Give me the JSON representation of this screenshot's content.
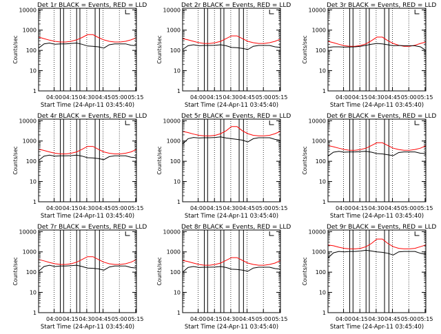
{
  "colors": {
    "events": "#000000",
    "lld": "#ff0000",
    "axis": "#000000",
    "background": "#ffffff"
  },
  "chart_data": [
    {
      "type": "line",
      "title": "Det 1r BLACK = Events, RED = LLD",
      "xlabel": "Start Time (24-Apr-11 03:45:40)",
      "ylabel": "Counts/sec",
      "x_tick_labels": [
        "04:00",
        "04:15",
        "04:30",
        "04:45",
        "05:00",
        "05:15"
      ],
      "y_tick_labels": [
        "1",
        "10",
        "100",
        "1000",
        "10000"
      ],
      "y_scale": "log",
      "ylim": [
        1,
        12000
      ],
      "x": [
        0,
        5,
        10,
        15,
        20,
        25,
        30,
        35,
        40,
        45,
        50,
        55,
        60,
        65,
        70,
        75,
        80,
        85,
        90
      ],
      "series": [
        {
          "name": "LLD",
          "color": "red",
          "values": [
            450,
            380,
            320,
            280,
            260,
            260,
            280,
            330,
            430,
            600,
            600,
            430,
            330,
            280,
            260,
            260,
            280,
            330,
            420
          ]
        },
        {
          "name": "Events",
          "color": "black",
          "values": [
            130,
            210,
            230,
            200,
            210,
            210,
            220,
            230,
            200,
            165,
            160,
            150,
            130,
            190,
            210,
            210,
            210,
            180,
            170
          ]
        }
      ]
    },
    {
      "type": "line",
      "title": "Det 2r BLACK = Events, RED = LLD",
      "xlabel": "Start Time (24-Apr-11 03:45:40)",
      "ylabel": "Counts/sec",
      "x_tick_labels": [
        "04:00",
        "04:15",
        "04:30",
        "04:45",
        "05:00",
        "05:15"
      ],
      "y_tick_labels": [
        "1",
        "10",
        "100",
        "1000",
        "10000"
      ],
      "y_scale": "log",
      "ylim": [
        1,
        12000
      ],
      "x": [
        0,
        5,
        10,
        15,
        20,
        25,
        30,
        35,
        40,
        45,
        50,
        55,
        60,
        65,
        70,
        75,
        80,
        85,
        90
      ],
      "series": [
        {
          "name": "LLD",
          "color": "red",
          "values": [
            380,
            330,
            280,
            240,
            220,
            220,
            240,
            280,
            380,
            520,
            520,
            380,
            280,
            240,
            220,
            220,
            240,
            280,
            360
          ]
        },
        {
          "name": "Events",
          "color": "black",
          "values": [
            110,
            170,
            190,
            170,
            175,
            175,
            180,
            190,
            170,
            140,
            135,
            125,
            110,
            160,
            175,
            175,
            175,
            150,
            140
          ]
        }
      ]
    },
    {
      "type": "line",
      "title": "Det 3r BLACK = Events, RED = LLD",
      "xlabel": "Start Time (24-Apr-11 03:45:40)",
      "ylabel": "Counts/sec",
      "x_tick_labels": [
        "04:00",
        "04:15",
        "04:30",
        "04:45",
        "05:00",
        "05:15"
      ],
      "y_tick_labels": [
        "1",
        "10",
        "100",
        "1000",
        "10000"
      ],
      "y_scale": "log",
      "ylim": [
        1,
        12000
      ],
      "x": [
        0,
        5,
        10,
        15,
        20,
        25,
        30,
        35,
        40,
        45,
        50,
        55,
        60,
        65,
        70,
        75,
        80,
        85,
        90
      ],
      "series": [
        {
          "name": "LLD",
          "color": "red",
          "values": [
            280,
            240,
            200,
            170,
            160,
            160,
            175,
            210,
            300,
            450,
            450,
            300,
            220,
            180,
            160,
            160,
            180,
            220,
            260
          ]
        },
        {
          "name": "Events",
          "color": "black",
          "values": [
            140,
            150,
            150,
            145,
            148,
            150,
            160,
            180,
            200,
            220,
            210,
            190,
            170,
            175,
            170,
            170,
            168,
            150,
            100
          ]
        }
      ]
    },
    {
      "type": "line",
      "title": "Det 4r BLACK = Events, RED = LLD",
      "xlabel": "Start Time (24-Apr-11 03:45:40)",
      "ylabel": "Counts/sec",
      "x_tick_labels": [
        "04:00",
        "04:15",
        "04:30",
        "04:45",
        "05:00",
        "05:15"
      ],
      "y_tick_labels": [
        "1",
        "10",
        "100",
        "1000",
        "10000"
      ],
      "y_scale": "log",
      "ylim": [
        1,
        12000
      ],
      "x": [
        0,
        5,
        10,
        15,
        20,
        25,
        30,
        35,
        40,
        45,
        50,
        55,
        60,
        65,
        70,
        75,
        80,
        85,
        90
      ],
      "series": [
        {
          "name": "LLD",
          "color": "red",
          "values": [
            400,
            340,
            290,
            250,
            230,
            230,
            250,
            290,
            390,
            540,
            540,
            390,
            290,
            250,
            230,
            230,
            250,
            290,
            380
          ]
        },
        {
          "name": "Events",
          "color": "black",
          "values": [
            110,
            180,
            200,
            180,
            185,
            185,
            190,
            200,
            180,
            150,
            145,
            135,
            120,
            170,
            185,
            185,
            185,
            160,
            150
          ]
        }
      ]
    },
    {
      "type": "line",
      "title": "Det 5r BLACK = Events, RED = LLD",
      "xlabel": "Start Time (24-Apr-11 03:45:40)",
      "ylabel": "Counts/sec",
      "x_tick_labels": [
        "04:00",
        "04:15",
        "04:30",
        "04:45",
        "05:00",
        "05:15"
      ],
      "y_tick_labels": [
        "1",
        "10",
        "100",
        "1000",
        "10000"
      ],
      "y_scale": "log",
      "ylim": [
        1,
        12000
      ],
      "x": [
        0,
        5,
        10,
        15,
        20,
        25,
        30,
        35,
        40,
        45,
        50,
        55,
        60,
        65,
        70,
        75,
        80,
        85,
        90
      ],
      "series": [
        {
          "name": "LLD",
          "color": "red",
          "values": [
            3000,
            2600,
            2200,
            1900,
            1800,
            1800,
            1900,
            2300,
            3200,
            5200,
            5200,
            3200,
            2300,
            1900,
            1800,
            1800,
            1900,
            2300,
            3000
          ]
        },
        {
          "name": "Events",
          "color": "black",
          "values": [
            700,
            1300,
            1500,
            1400,
            1450,
            1450,
            1500,
            1600,
            1400,
            1300,
            1200,
            1100,
            900,
            1300,
            1450,
            1450,
            1450,
            1200,
            1100
          ]
        }
      ]
    },
    {
      "type": "line",
      "title": "Det 6r BLACK = Events, RED = LLD",
      "xlabel": "Start Time (24-Apr-11 03:45:40)",
      "ylabel": "Counts/sec",
      "x_tick_labels": [
        "04:00",
        "04:15",
        "04:30",
        "04:45",
        "05:00",
        "05:15"
      ],
      "y_tick_labels": [
        "1",
        "10",
        "100",
        "1000",
        "10000"
      ],
      "y_scale": "log",
      "ylim": [
        1,
        12000
      ],
      "x": [
        0,
        5,
        10,
        15,
        20,
        25,
        30,
        35,
        40,
        45,
        50,
        55,
        60,
        65,
        70,
        75,
        80,
        85,
        90
      ],
      "series": [
        {
          "name": "LLD",
          "color": "red",
          "values": [
            600,
            520,
            440,
            380,
            350,
            350,
            380,
            440,
            600,
            820,
            820,
            600,
            440,
            380,
            350,
            350,
            380,
            440,
            580
          ]
        },
        {
          "name": "Events",
          "color": "black",
          "values": [
            180,
            280,
            310,
            280,
            290,
            290,
            300,
            310,
            280,
            240,
            230,
            210,
            190,
            270,
            290,
            290,
            290,
            250,
            240
          ]
        }
      ]
    },
    {
      "type": "line",
      "title": "Det 7r BLACK = Events, RED = LLD",
      "xlabel": "Start Time (24-Apr-11 03:45:40)",
      "ylabel": "Counts/sec",
      "x_tick_labels": [
        "04:00",
        "04:15",
        "04:30",
        "04:45",
        "05:00",
        "05:15"
      ],
      "y_tick_labels": [
        "1",
        "10",
        "100",
        "1000",
        "10000"
      ],
      "y_scale": "log",
      "ylim": [
        1,
        12000
      ],
      "x": [
        0,
        5,
        10,
        15,
        20,
        25,
        30,
        35,
        40,
        45,
        50,
        55,
        60,
        65,
        70,
        75,
        80,
        85,
        90
      ],
      "series": [
        {
          "name": "LLD",
          "color": "red",
          "values": [
            420,
            360,
            300,
            260,
            240,
            240,
            260,
            310,
            420,
            580,
            580,
            420,
            310,
            260,
            240,
            240,
            260,
            310,
            410
          ]
        },
        {
          "name": "Events",
          "color": "black",
          "values": [
            110,
            190,
            220,
            190,
            200,
            200,
            210,
            220,
            190,
            160,
            155,
            145,
            125,
            180,
            200,
            200,
            200,
            170,
            160
          ]
        }
      ]
    },
    {
      "type": "line",
      "title": "Det 8r BLACK = Events, RED = LLD",
      "xlabel": "Start Time (24-Apr-11 03:45:40)",
      "ylabel": "Counts/sec",
      "x_tick_labels": [
        "04:00",
        "04:15",
        "04:30",
        "04:45",
        "05:00",
        "05:15"
      ],
      "y_tick_labels": [
        "1",
        "10",
        "100",
        "1000",
        "10000"
      ],
      "y_scale": "log",
      "ylim": [
        1,
        12000
      ],
      "x": [
        0,
        5,
        10,
        15,
        20,
        25,
        30,
        35,
        40,
        45,
        50,
        55,
        60,
        65,
        70,
        75,
        80,
        85,
        90
      ],
      "series": [
        {
          "name": "LLD",
          "color": "red",
          "values": [
            380,
            330,
            280,
            240,
            220,
            220,
            240,
            280,
            380,
            520,
            520,
            380,
            280,
            240,
            220,
            220,
            240,
            280,
            370
          ]
        },
        {
          "name": "Events",
          "color": "black",
          "values": [
            100,
            170,
            190,
            170,
            175,
            175,
            180,
            190,
            170,
            140,
            135,
            125,
            110,
            160,
            175,
            175,
            175,
            150,
            140
          ]
        }
      ]
    },
    {
      "type": "line",
      "title": "Det 9r BLACK = Events, RED = LLD",
      "xlabel": "Start Time (24-Apr-11 03:45:40)",
      "ylabel": "Counts/sec",
      "x_tick_labels": [
        "04:00",
        "04:15",
        "04:30",
        "04:45",
        "05:00",
        "05:15"
      ],
      "y_tick_labels": [
        "1",
        "10",
        "100",
        "1000",
        "10000"
      ],
      "y_scale": "log",
      "ylim": [
        1,
        12000
      ],
      "x": [
        0,
        5,
        10,
        15,
        20,
        25,
        30,
        35,
        40,
        45,
        50,
        55,
        60,
        65,
        70,
        75,
        80,
        85,
        90
      ],
      "series": [
        {
          "name": "LLD",
          "color": "red",
          "values": [
            2200,
            2000,
            1700,
            1500,
            1400,
            1400,
            1500,
            1800,
            2600,
            4300,
            4300,
            2600,
            1800,
            1500,
            1400,
            1400,
            1500,
            1800,
            2200
          ]
        },
        {
          "name": "Events",
          "color": "black",
          "values": [
            500,
            900,
            1050,
            1000,
            1050,
            1050,
            1100,
            1200,
            1100,
            1000,
            950,
            850,
            700,
            1000,
            1050,
            1050,
            1050,
            850,
            750
          ]
        }
      ]
    }
  ]
}
